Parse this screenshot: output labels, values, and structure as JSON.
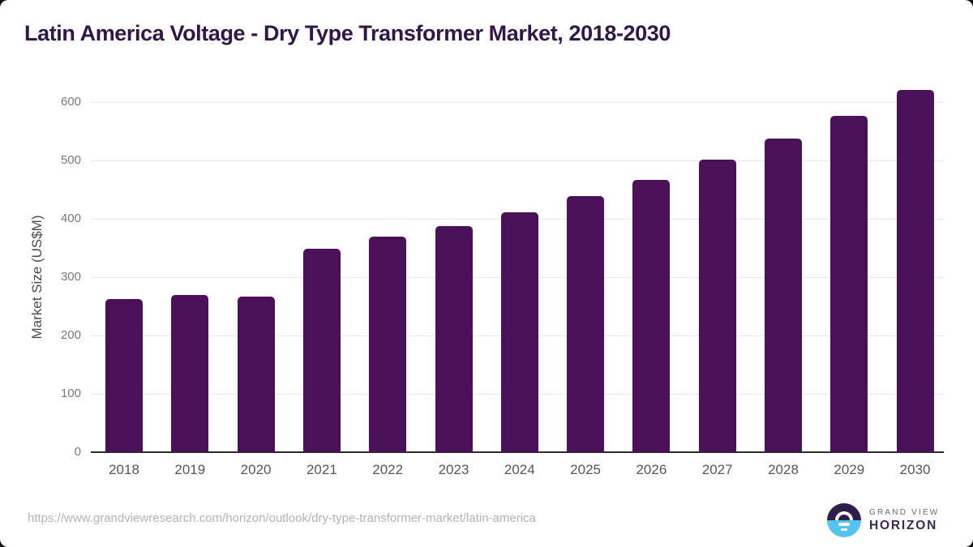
{
  "page": {
    "title": "Latin America Voltage - Dry Type Transformer Market, 2018-2030"
  },
  "chart_data": {
    "type": "bar",
    "title": "Latin America Voltage - Dry Type Transformer Market, 2018-2030",
    "categories": [
      "2018",
      "2019",
      "2020",
      "2021",
      "2022",
      "2023",
      "2024",
      "2025",
      "2026",
      "2027",
      "2028",
      "2029",
      "2030"
    ],
    "values": [
      262,
      269,
      266,
      349,
      369,
      388,
      411,
      439,
      467,
      502,
      537,
      576,
      621
    ],
    "xlabel": "",
    "ylabel": "Market Size (US$M)",
    "ylim": [
      0,
      650
    ],
    "yticks": [
      0,
      100,
      200,
      300,
      400,
      500,
      600
    ],
    "grid": "horizontal-only",
    "legend": "none",
    "bar_color": "#4a1158",
    "axis_color": "#2b2b2b",
    "gridline_color": "#e7e7e9",
    "title_color": "#321549"
  },
  "footer": {
    "source_url": "https://www.grandviewresearch.com/horizon/outlook/dry-type-transformer-market/latin-america",
    "logo": {
      "line1": "GRAND VIEW",
      "line2": "HORIZON",
      "brand_dark": "#2e1d49",
      "brand_blue": "#55c3f0"
    }
  }
}
